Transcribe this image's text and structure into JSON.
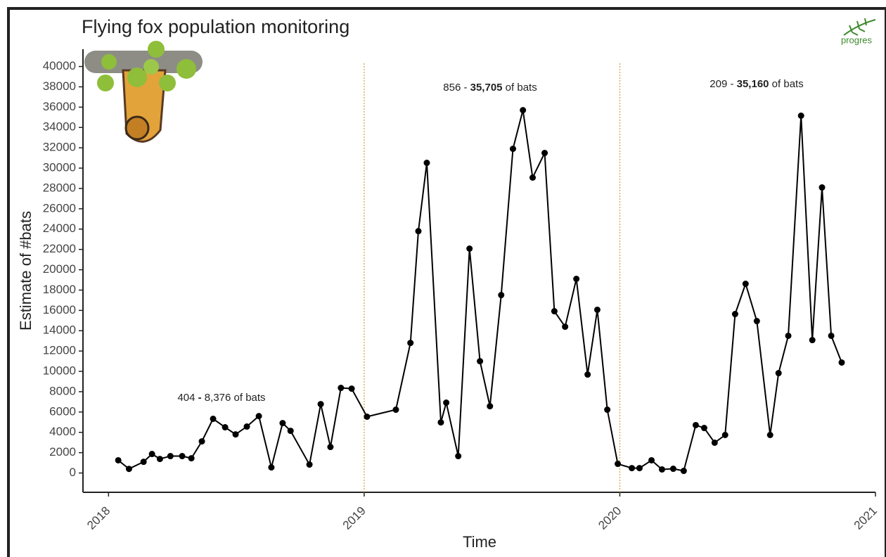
{
  "chart_data": {
    "type": "line",
    "title": "Flying fox population monitoring",
    "logo": "progres",
    "x_label": "Time",
    "y_label": "Estimate of #bats",
    "x": [
      2018.038,
      2018.08,
      2018.137,
      2018.17,
      2018.201,
      2018.242,
      2018.288,
      2018.324,
      2018.365,
      2018.409,
      2018.456,
      2018.497,
      2018.541,
      2018.588,
      2018.637,
      2018.681,
      2018.712,
      2018.786,
      2018.83,
      2018.868,
      2018.909,
      2018.951,
      2019.011,
      2019.124,
      2019.181,
      2019.212,
      2019.245,
      2019.3,
      2019.321,
      2019.368,
      2019.412,
      2019.453,
      2019.492,
      2019.536,
      2019.582,
      2019.621,
      2019.659,
      2019.706,
      2019.744,
      2019.786,
      2019.83,
      2019.874,
      2019.912,
      2019.951,
      2019.992,
      2020.047,
      2020.077,
      2020.124,
      2020.165,
      2020.209,
      2020.25,
      2020.297,
      2020.33,
      2020.371,
      2020.412,
      2020.451,
      2020.492,
      2020.536,
      2020.588,
      2020.621,
      2020.659,
      2020.709,
      2020.753,
      2020.791,
      2020.827,
      2020.868
    ],
    "values": [
      1250,
      404,
      1100,
      1870,
      1380,
      1660,
      1660,
      1450,
      3110,
      5330,
      4500,
      3800,
      4570,
      5600,
      550,
      4910,
      4150,
      830,
      6780,
      2560,
      8376,
      8300,
      5540,
      6230,
      12800,
      23800,
      30520,
      4980,
      6920,
      1660,
      22080,
      11000,
      6570,
      17510,
      31900,
      35705,
      29070,
      31490,
      15920,
      14390,
      19100,
      9690,
      16060,
      6230,
      900,
      480,
      480,
      1250,
      350,
      415,
      209,
      4710,
      4430,
      2980,
      3740,
      15640,
      18620,
      14950,
      3740,
      9830,
      13500,
      35160,
      13080,
      28100,
      13500,
      10870
    ],
    "color": "#000000",
    "xlim": [
      2017.9,
      2021.0
    ],
    "xticks": [
      2018,
      2019,
      2020,
      2021
    ],
    "ylim": [
      -1900,
      41700
    ],
    "yticks": [
      0,
      2000,
      4000,
      6000,
      8000,
      10000,
      12000,
      14000,
      16000,
      18000,
      20000,
      22000,
      24000,
      26000,
      28000,
      30000,
      32000,
      34000,
      36000,
      38000,
      40000
    ],
    "vlines": [
      2019,
      2020
    ],
    "vline_color": "#d9a441",
    "annotations": [
      {
        "segments": [
          "404 ",
          "-",
          " 8,376 of bats"
        ],
        "bold": 1
      },
      {
        "segments": [
          "856 - ",
          "35,705",
          " of bats"
        ],
        "bold": 1
      },
      {
        "segments": [
          "209 - ",
          "35,160",
          " of bats"
        ],
        "bold": 1
      }
    ]
  }
}
